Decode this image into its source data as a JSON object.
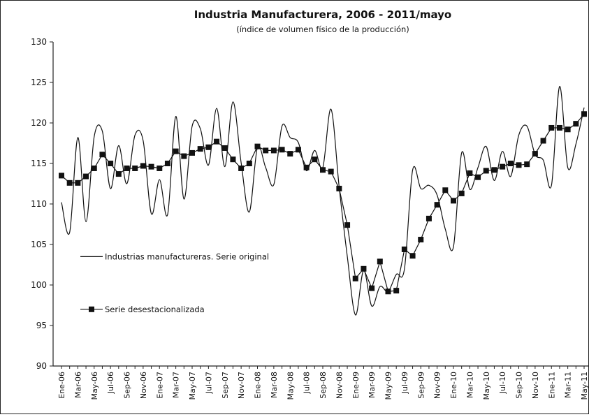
{
  "chart_data": {
    "type": "line",
    "title": "Industria Manufacturera, 2006 - 2011/mayo",
    "subtitle": "(índice de volumen físico de la producción)",
    "xlabel": "",
    "ylabel": "",
    "ylim": [
      90,
      130
    ],
    "yticks": [
      90,
      95,
      100,
      105,
      110,
      115,
      120,
      125,
      130
    ],
    "grid": false,
    "legend_position": "left",
    "x": [
      "Ene-06",
      "Feb-06",
      "Mar-06",
      "Abr-06",
      "May-06",
      "Jun-06",
      "Jul-06",
      "Ago-06",
      "Sep-06",
      "Oct-06",
      "Nov-06",
      "Dic-06",
      "Ene-07",
      "Feb-07",
      "Mar-07",
      "Abr-07",
      "May-07",
      "Jun-07",
      "Jul-07",
      "Ago-07",
      "Sep-07",
      "Oct-07",
      "Nov-07",
      "Dic-07",
      "Ene-08",
      "Feb-08",
      "Mar-08",
      "Abr-08",
      "May-08",
      "Jun-08",
      "Jul-08",
      "Ago-08",
      "Sep-08",
      "Oct-08",
      "Nov-08",
      "Dic-08",
      "Ene-09",
      "Feb-09",
      "Mar-09",
      "Abr-09",
      "May-09",
      "Jun-09",
      "Jul-09",
      "Ago-09",
      "Sep-09",
      "Oct-09",
      "Nov-09",
      "Dic-09",
      "Ene-10",
      "Feb-10",
      "Mar-10",
      "Abr-10",
      "May-10",
      "Jun-10",
      "Jul-10",
      "Ago-10",
      "Sep-10",
      "Oct-10",
      "Nov-10",
      "Dic-10",
      "Ene-11",
      "Feb-11",
      "Mar-11",
      "Abr-11",
      "May-11"
    ],
    "xtick_labels": [
      "Ene-06",
      "Mar-06",
      "May-06",
      "Jul-06",
      "Sep-06",
      "Nov-06",
      "Ene-07",
      "Mar-07",
      "May-07",
      "Jul-07",
      "Sep-07",
      "Nov-07",
      "Ene-08",
      "Mar-08",
      "May-08",
      "Jul-08",
      "Sep-08",
      "Nov-08",
      "Ene-09",
      "Mar-09",
      "May-09",
      "Jul-09",
      "Sep-09",
      "Nov-09",
      "Ene-10",
      "Mar-10",
      "May-10",
      "Jul-10",
      "Sep-10",
      "Nov-10",
      "Ene-11",
      "Mar-11",
      "May-11"
    ],
    "series": [
      {
        "name": "Industrias manufactureras. Serie original",
        "marker": "none",
        "color": "#111111",
        "values": [
          110.2,
          106.5,
          118.2,
          107.8,
          118.3,
          119.0,
          111.9,
          117.2,
          112.5,
          118.5,
          117.8,
          108.8,
          113.0,
          108.7,
          120.8,
          110.6,
          119.6,
          119.3,
          114.8,
          121.8,
          114.6,
          122.6,
          115.1,
          109.0,
          117.0,
          114.5,
          112.4,
          119.6,
          118.2,
          117.6,
          114.1,
          116.6,
          114.5,
          121.7,
          112.1,
          103.5,
          96.3,
          101.8,
          97.4,
          99.8,
          99.2,
          101.3,
          102.0,
          114.2,
          111.9,
          112.3,
          111.1,
          106.9,
          104.7,
          116.3,
          111.8,
          114.5,
          117.1,
          112.9,
          116.5,
          113.4,
          118.5,
          119.6,
          116.1,
          115.4,
          112.3,
          124.5,
          114.5,
          117.4,
          121.9
        ]
      },
      {
        "name": "Serie desestacionalizada",
        "marker": "square",
        "color": "#111111",
        "values": [
          113.5,
          112.6,
          112.6,
          113.4,
          114.4,
          116.1,
          115.0,
          113.7,
          114.4,
          114.4,
          114.7,
          114.6,
          114.4,
          115.0,
          116.5,
          115.9,
          116.3,
          116.8,
          117.0,
          117.7,
          116.9,
          115.5,
          114.4,
          115.0,
          117.1,
          116.6,
          116.6,
          116.7,
          116.2,
          116.7,
          114.5,
          115.5,
          114.2,
          114.0,
          111.9,
          107.4,
          100.8,
          102.0,
          99.6,
          102.9,
          99.2,
          99.3,
          104.4,
          103.6,
          105.6,
          108.2,
          109.9,
          111.7,
          110.4,
          111.3,
          113.8,
          113.3,
          114.1,
          114.2,
          114.6,
          115.0,
          114.8,
          114.9,
          116.2,
          117.8,
          119.4,
          119.4,
          119.2,
          119.9,
          121.1
        ]
      }
    ]
  }
}
